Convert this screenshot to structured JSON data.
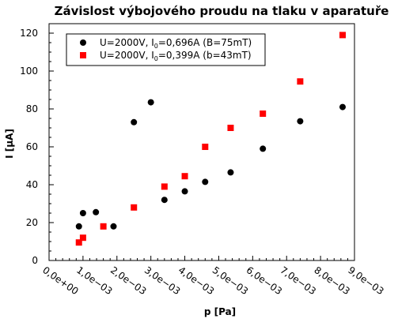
{
  "chart_data": {
    "type": "scatter",
    "title": "Závislost výbojového proudu na tlaku v aparatuře",
    "xlabel": "p [Pa]",
    "ylabel": "I [µA]",
    "xlim": [
      0,
      0.009
    ],
    "ylim": [
      0,
      125
    ],
    "x_ticks": [
      "0,0e+00",
      "1,0e−03",
      "2,0e−03",
      "3,0e−03",
      "4,0e−03",
      "5,0e−03",
      "6,0e−03",
      "7,0e−03",
      "8,0e−03",
      "9,0e−03"
    ],
    "y_ticks": [
      "0",
      "20",
      "40",
      "60",
      "80",
      "100",
      "120"
    ],
    "grid": false,
    "legend_position": "top-left",
    "series": [
      {
        "name": "U=2000V, I0=0,696A (B=75mT)",
        "legend": {
          "pre": "U=2000V, I",
          "sub": "0",
          "post": "=0,696A (B=75mT)"
        },
        "marker": "circle",
        "color": "#000000",
        "points": [
          [
            0.00088,
            18
          ],
          [
            0.001,
            25
          ],
          [
            0.00138,
            25.5
          ],
          [
            0.0019,
            18
          ],
          [
            0.0025,
            73
          ],
          [
            0.003,
            83.5
          ],
          [
            0.0034,
            32
          ],
          [
            0.004,
            36.5
          ],
          [
            0.0046,
            41.5
          ],
          [
            0.00535,
            46.5
          ],
          [
            0.0063,
            59
          ],
          [
            0.0074,
            73.5
          ],
          [
            0.00865,
            81
          ]
        ]
      },
      {
        "name": "U=2000V, I0=0,399A (b=43mT)",
        "legend": {
          "pre": "U=2000V, I",
          "sub": "0",
          "post": "=0,399A (b=43mT)"
        },
        "marker": "square",
        "color": "#ff0000",
        "points": [
          [
            0.00088,
            9.5
          ],
          [
            0.001,
            12
          ],
          [
            0.0016,
            18
          ],
          [
            0.0025,
            28
          ],
          [
            0.0034,
            39
          ],
          [
            0.004,
            44.5
          ],
          [
            0.0046,
            60
          ],
          [
            0.00535,
            70
          ],
          [
            0.0063,
            77.5
          ],
          [
            0.0074,
            94.5
          ],
          [
            0.00865,
            119
          ]
        ]
      }
    ]
  }
}
